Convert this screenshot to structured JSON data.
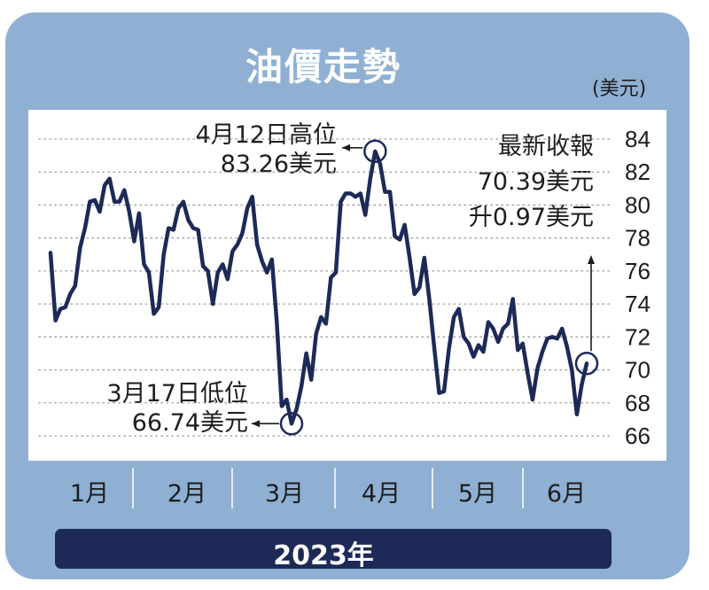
{
  "title": "油價走勢",
  "unit": "(美元)",
  "year_label": "2023年",
  "colors": {
    "frame": "#8fb0d3",
    "line": "#1d2a57",
    "year_bar": "#1d2a57",
    "plot_bg": "#ffffff",
    "grid": "#9a9a9a"
  },
  "annotations": {
    "high": {
      "line1": "4月12日高位",
      "line2": "83.26美元",
      "month": 4,
      "day": 12,
      "value": 83.26
    },
    "low": {
      "line1": "3月17日低位",
      "line2": "66.74美元",
      "month": 3,
      "day": 17,
      "value": 66.74
    },
    "latest": {
      "line1": "最新收報",
      "line2": "70.39美元",
      "line3": "升0.97美元",
      "value": 70.39
    }
  },
  "chart_data": {
    "type": "line",
    "title": "油價走勢",
    "ylabel": "(美元)",
    "xlabel": "2023年",
    "ylim": [
      65,
      85
    ],
    "yticks": [
      66,
      68,
      70,
      72,
      74,
      76,
      78,
      80,
      82,
      84
    ],
    "grid": "horizontal dotted",
    "months": [
      "1月",
      "2月",
      "3月",
      "4月",
      "5月",
      "6月"
    ],
    "series": [
      {
        "values": [
          77.1,
          73.0,
          73.7,
          73.8,
          74.6,
          75.1,
          77.4,
          78.6,
          80.2,
          80.3,
          79.6,
          81.2,
          81.6,
          80.2,
          80.2,
          80.9,
          79.6,
          77.8,
          79.5,
          76.4,
          75.9,
          73.4,
          73.8,
          77.0,
          78.6,
          78.5,
          79.8,
          80.2,
          79.1,
          78.6,
          78.5,
          76.3,
          76.0,
          74.0,
          75.9,
          76.4,
          75.5,
          77.2,
          77.6,
          78.3,
          79.8,
          80.5,
          77.6,
          76.6,
          75.9,
          76.7,
          72.9,
          67.8,
          68.2,
          66.74,
          67.6,
          69.0,
          71.0,
          69.4,
          72.2,
          73.2,
          72.8,
          75.6,
          75.9,
          80.2,
          80.7,
          80.7,
          80.5,
          80.7,
          79.4,
          81.6,
          83.26,
          82.5,
          80.8,
          80.8,
          78.1,
          77.9,
          78.8,
          76.8,
          74.6,
          75.0,
          76.8,
          74.3,
          71.4,
          68.6,
          68.7,
          71.3,
          73.2,
          73.7,
          72.0,
          71.6,
          70.8,
          71.5,
          71.1,
          72.9,
          72.5,
          71.7,
          72.5,
          72.8,
          74.3,
          71.2,
          71.6,
          69.8,
          68.2,
          70.1,
          71.1,
          71.9,
          72.0,
          71.9,
          72.5,
          71.4,
          70.0,
          67.3,
          69.1,
          70.39
        ]
      }
    ]
  }
}
